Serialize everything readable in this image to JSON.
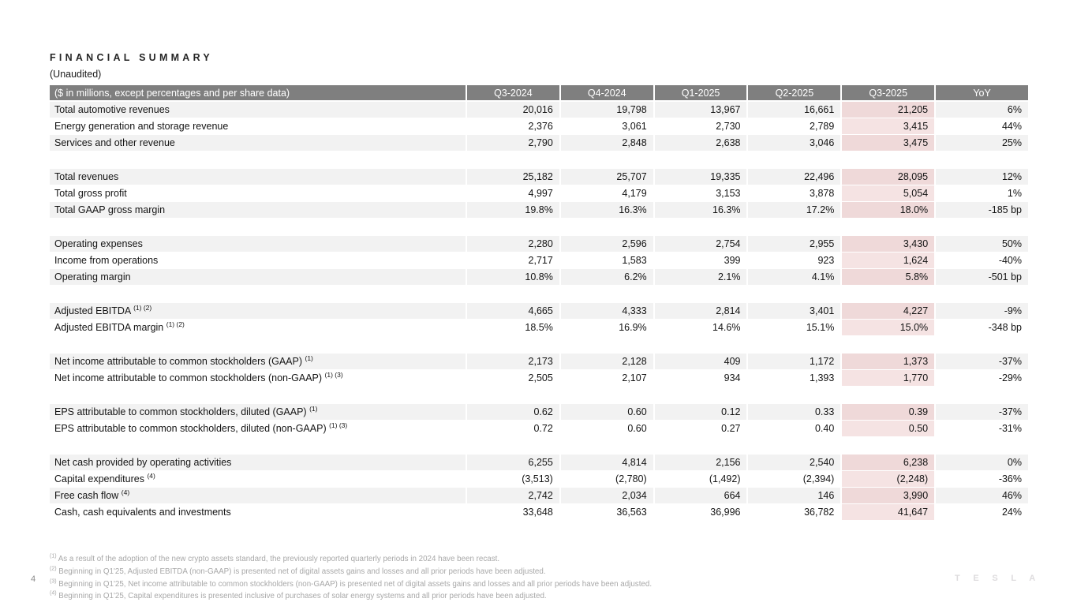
{
  "slide": {
    "title": "FINANCIAL SUMMARY",
    "subtitle": "(Unaudited)",
    "page_number": "4",
    "brand": "T E S L A"
  },
  "colors": {
    "header_bg": "#7f7f7f",
    "header_text": "#ffffff",
    "row_stripe": "#f2f2f2",
    "highlight_on_stripe": "#efd9d9",
    "highlight_on_white": "#f5e3e3",
    "footnote_text": "#a8a8a8"
  },
  "table": {
    "corner_label": "($ in millions, except percentages and per share data)",
    "columns": [
      "Q3-2024",
      "Q4-2024",
      "Q1-2025",
      "Q2-2025",
      "Q3-2025",
      "YoY"
    ],
    "highlight_column": "Q3-2025",
    "highlight_column_index": 4,
    "groups": [
      {
        "rows": [
          {
            "label": "Total automotive revenues",
            "sup": "",
            "values": [
              "20,016",
              "19,798",
              "13,967",
              "16,661",
              "21,205",
              "6%"
            ]
          },
          {
            "label": "Energy generation and storage revenue",
            "sup": "",
            "values": [
              "2,376",
              "3,061",
              "2,730",
              "2,789",
              "3,415",
              "44%"
            ]
          },
          {
            "label": "Services and other revenue",
            "sup": "",
            "values": [
              "2,790",
              "2,848",
              "2,638",
              "3,046",
              "3,475",
              "25%"
            ]
          }
        ]
      },
      {
        "rows": [
          {
            "label": "Total revenues",
            "sup": "",
            "values": [
              "25,182",
              "25,707",
              "19,335",
              "22,496",
              "28,095",
              "12%"
            ]
          },
          {
            "label": "Total gross profit",
            "sup": "",
            "values": [
              "4,997",
              "4,179",
              "3,153",
              "3,878",
              "5,054",
              "1%"
            ]
          },
          {
            "label": "Total GAAP gross margin",
            "sup": "",
            "values": [
              "19.8%",
              "16.3%",
              "16.3%",
              "17.2%",
              "18.0%",
              "-185 bp"
            ]
          }
        ]
      },
      {
        "rows": [
          {
            "label": "Operating expenses",
            "sup": "",
            "values": [
              "2,280",
              "2,596",
              "2,754",
              "2,955",
              "3,430",
              "50%"
            ]
          },
          {
            "label": "Income from operations",
            "sup": "",
            "values": [
              "2,717",
              "1,583",
              "399",
              "923",
              "1,624",
              "-40%"
            ]
          },
          {
            "label": "Operating margin",
            "sup": "",
            "values": [
              "10.8%",
              "6.2%",
              "2.1%",
              "4.1%",
              "5.8%",
              "-501 bp"
            ]
          }
        ]
      },
      {
        "rows": [
          {
            "label": "Adjusted EBITDA",
            "sup": "(1) (2)",
            "values": [
              "4,665",
              "4,333",
              "2,814",
              "3,401",
              "4,227",
              "-9%"
            ]
          },
          {
            "label": "Adjusted EBITDA margin",
            "sup": "(1) (2)",
            "values": [
              "18.5%",
              "16.9%",
              "14.6%",
              "15.1%",
              "15.0%",
              "-348 bp"
            ]
          }
        ]
      },
      {
        "rows": [
          {
            "label": "Net income attributable to common stockholders (GAAP)",
            "sup": "(1)",
            "values": [
              "2,173",
              "2,128",
              "409",
              "1,172",
              "1,373",
              "-37%"
            ]
          },
          {
            "label": "Net income attributable to common stockholders (non-GAAP)",
            "sup": "(1) (3)",
            "values": [
              "2,505",
              "2,107",
              "934",
              "1,393",
              "1,770",
              "-29%"
            ]
          }
        ]
      },
      {
        "rows": [
          {
            "label": "EPS attributable to common stockholders, diluted (GAAP)",
            "sup": "(1)",
            "values": [
              "0.62",
              "0.60",
              "0.12",
              "0.33",
              "0.39",
              "-37%"
            ]
          },
          {
            "label": "EPS attributable to common stockholders, diluted (non-GAAP)",
            "sup": "(1) (3)",
            "values": [
              "0.72",
              "0.60",
              "0.27",
              "0.40",
              "0.50",
              "-31%"
            ]
          }
        ]
      },
      {
        "rows": [
          {
            "label": "Net cash provided by operating activities",
            "sup": "",
            "values": [
              "6,255",
              "4,814",
              "2,156",
              "2,540",
              "6,238",
              "0%"
            ]
          },
          {
            "label": "Capital expenditures",
            "sup": "(4)",
            "values": [
              "(3,513)",
              "(2,780)",
              "(1,492)",
              "(2,394)",
              "(2,248)",
              "-36%"
            ]
          },
          {
            "label": "Free cash flow",
            "sup": "(4)",
            "values": [
              "2,742",
              "2,034",
              "664",
              "146",
              "3,990",
              "46%"
            ]
          },
          {
            "label": "Cash, cash equivalents and investments",
            "sup": "",
            "values": [
              "33,648",
              "36,563",
              "36,996",
              "36,782",
              "41,647",
              "24%"
            ]
          }
        ]
      }
    ]
  },
  "footnotes": [
    {
      "marker": "(1)",
      "text": "As a result of the adoption of the new crypto assets standard, the previously reported quarterly periods in 2024 have been recast."
    },
    {
      "marker": "(2)",
      "text": "Beginning in Q1'25, Adjusted EBITDA (non-GAAP) is presented net of digital assets gains and losses and all prior periods have been adjusted."
    },
    {
      "marker": "(3)",
      "text": "Beginning in Q1'25, Net income attributable to common stockholders (non-GAAP) is presented net of digital assets gains and losses and all prior periods have been adjusted."
    },
    {
      "marker": "(4)",
      "text": "Beginning in Q1'25, Capital expenditures is presented inclusive of purchases of solar energy systems and all prior periods have been adjusted."
    }
  ]
}
